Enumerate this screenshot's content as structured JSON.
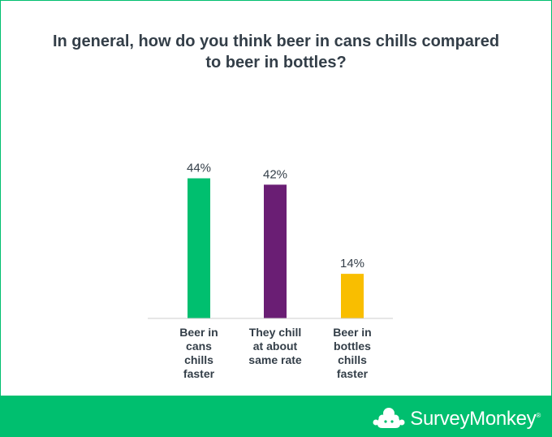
{
  "chart_data": {
    "type": "bar",
    "title": "In general, how do you think beer in cans chills compared to beer in bottles?",
    "categories": [
      "Beer in cans chills faster",
      "They chill at about same rate",
      "Beer in bottles chills faster"
    ],
    "category_lines": [
      [
        "Beer in",
        "cans",
        "chills",
        "faster"
      ],
      [
        "They chill",
        "at about",
        "same rate"
      ],
      [
        "Beer in",
        "bottles",
        "chills",
        "faster"
      ]
    ],
    "values": [
      44,
      42,
      14
    ],
    "value_labels": [
      "44%",
      "42%",
      "14%"
    ],
    "colors": [
      "#00bf6f",
      "#6a1e74",
      "#f9be00"
    ],
    "ylim": [
      0,
      100
    ],
    "grid": false,
    "xlabel": "",
    "ylabel": ""
  },
  "brand": {
    "name": "SurveyMonkey",
    "trademark": "®",
    "icon": "surveymonkey-logo-icon"
  },
  "colors": {
    "footer": "#00bf6f",
    "border": "#00bf6f",
    "text": "#333e48"
  }
}
